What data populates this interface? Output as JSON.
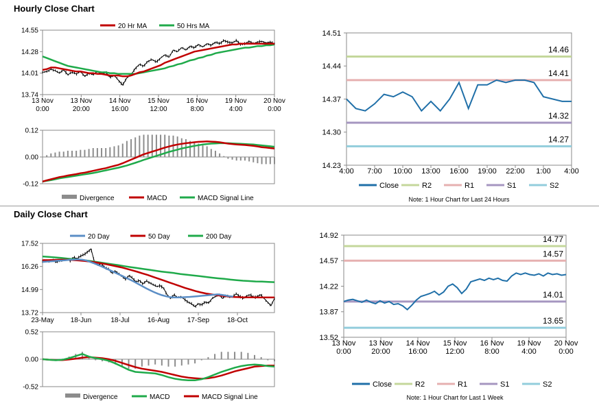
{
  "sections": {
    "hourly_title": "Hourly Close Chart",
    "daily_title": "Daily Close Chart"
  },
  "colors": {
    "ma_short": "#c00000",
    "ma_long": "#1faa4a",
    "ma_20d": "#5b8ec6",
    "close": "#1f6fa8",
    "r2": "#c4d79b",
    "r1": "#e6b0b0",
    "s1": "#a596c0",
    "s2": "#92cddc",
    "divergence": "#8c8c8c",
    "price": "#000000"
  },
  "chart_data": [
    {
      "id": "hourly_price",
      "type": "line",
      "legend": [
        "20 Hr MA",
        "50 Hrs MA"
      ],
      "ylim": [
        13.74,
        14.55
      ],
      "y_ticks": [
        "14.55",
        "14.28",
        "14.01",
        "13.74"
      ],
      "x_ticks": [
        [
          "13 Nov",
          "0:00"
        ],
        [
          "13 Nov",
          "20:00"
        ],
        [
          "14 Nov",
          "16:00"
        ],
        [
          "15 Nov",
          "12:00"
        ],
        [
          "16 Nov",
          "8:00"
        ],
        [
          "19 Nov",
          "4:00"
        ],
        [
          "20 Nov",
          "0:00"
        ]
      ],
      "price": [
        14.02,
        14.03,
        14.06,
        14.04,
        14.01,
        14.05,
        13.99,
        14.02,
        14.0,
        14.03,
        13.97,
        14.01,
        13.99,
        14.03,
        14.0,
        14.02,
        13.96,
        13.98,
        13.92,
        13.86,
        13.95,
        13.99,
        14.07,
        14.12,
        14.1,
        14.16,
        14.18,
        14.15,
        14.2,
        14.24,
        14.21,
        14.3,
        14.28,
        14.33,
        14.3,
        14.35,
        14.33,
        14.37,
        14.34,
        14.38,
        14.36,
        14.4,
        14.38,
        14.42,
        14.4,
        14.39,
        14.42,
        14.37,
        14.38,
        14.41,
        14.38,
        14.4,
        14.41,
        14.39,
        14.4,
        14.38
      ],
      "ma20": [
        14.05,
        14.06,
        14.08,
        14.08,
        14.07,
        14.06,
        14.05,
        14.04,
        14.03,
        14.03,
        14.02,
        14.01,
        14.01,
        14.0,
        14.0,
        13.99,
        13.98,
        13.98,
        13.98,
        13.97,
        13.97,
        13.98,
        14.0,
        14.02,
        14.03,
        14.05,
        14.07,
        14.09,
        14.11,
        14.14,
        14.16,
        14.18,
        14.2,
        14.22,
        14.24,
        14.26,
        14.28,
        14.29,
        14.3,
        14.31,
        14.32,
        14.33,
        14.34,
        14.35,
        14.36,
        14.37,
        14.37,
        14.38,
        14.38,
        14.38,
        14.38,
        14.38,
        14.38,
        14.38,
        14.38,
        14.38
      ],
      "ma50": [
        14.22,
        14.2,
        14.18,
        14.16,
        14.14,
        14.12,
        14.1,
        14.09,
        14.08,
        14.07,
        14.06,
        14.05,
        14.04,
        14.03,
        14.02,
        14.02,
        14.01,
        14.01,
        14.0,
        14.0,
        14.0,
        14.0,
        14.0,
        14.01,
        14.02,
        14.03,
        14.04,
        14.05,
        14.06,
        14.07,
        14.09,
        14.1,
        14.12,
        14.13,
        14.15,
        14.17,
        14.18,
        14.2,
        14.21,
        14.23,
        14.24,
        14.26,
        14.27,
        14.28,
        14.29,
        14.3,
        14.31,
        14.32,
        14.33,
        14.33,
        14.34,
        14.35,
        14.35,
        14.36,
        14.36,
        14.37
      ]
    },
    {
      "id": "hourly_macd",
      "type": "line",
      "legend": [
        "Divergence",
        "MACD",
        "MACD Signal Line"
      ],
      "ylim": [
        -0.12,
        0.12
      ],
      "y_ticks": [
        "0.12",
        "0.00",
        "-0.12"
      ],
      "macd": [
        -0.11,
        -0.105,
        -0.1,
        -0.095,
        -0.09,
        -0.087,
        -0.083,
        -0.08,
        -0.077,
        -0.073,
        -0.07,
        -0.066,
        -0.062,
        -0.058,
        -0.054,
        -0.05,
        -0.045,
        -0.04,
        -0.035,
        -0.028,
        -0.02,
        -0.012,
        -0.004,
        0.004,
        0.012,
        0.018,
        0.024,
        0.03,
        0.036,
        0.042,
        0.047,
        0.052,
        0.056,
        0.059,
        0.062,
        0.064,
        0.066,
        0.068,
        0.069,
        0.07,
        0.069,
        0.068,
        0.066,
        0.063,
        0.06,
        0.058,
        0.056,
        0.055,
        0.054,
        0.052,
        0.05,
        0.047,
        0.044,
        0.042,
        0.04,
        0.038
      ],
      "signal": [
        -0.11,
        -0.107,
        -0.104,
        -0.1,
        -0.096,
        -0.093,
        -0.09,
        -0.087,
        -0.084,
        -0.081,
        -0.078,
        -0.075,
        -0.072,
        -0.068,
        -0.064,
        -0.06,
        -0.056,
        -0.052,
        -0.048,
        -0.043,
        -0.038,
        -0.032,
        -0.026,
        -0.02,
        -0.013,
        -0.007,
        -0.001,
        0.005,
        0.011,
        0.017,
        0.023,
        0.028,
        0.033,
        0.038,
        0.042,
        0.046,
        0.05,
        0.053,
        0.056,
        0.058,
        0.06,
        0.061,
        0.062,
        0.062,
        0.062,
        0.061,
        0.06,
        0.059,
        0.058,
        0.057,
        0.056,
        0.054,
        0.052,
        0.05,
        0.048,
        0.046
      ]
    },
    {
      "id": "hourly_levels",
      "type": "line",
      "legend": [
        "Close",
        "R2",
        "R1",
        "S1",
        "S2"
      ],
      "note": "Note: 1 Hour Chart for Last 24 Hours",
      "ylim": [
        14.23,
        14.51
      ],
      "y_ticks": [
        "14.51",
        "14.44",
        "14.37",
        "14.30",
        "14.23"
      ],
      "x_ticks": [
        "4:00",
        "7:00",
        "10:00",
        "13:00",
        "16:00",
        "19:00",
        "22:00",
        "1:00",
        "4:00"
      ],
      "close": [
        14.37,
        14.35,
        14.345,
        14.36,
        14.38,
        14.375,
        14.385,
        14.375,
        14.345,
        14.365,
        14.345,
        14.37,
        14.405,
        14.35,
        14.4,
        14.4,
        14.41,
        14.405,
        14.41,
        14.41,
        14.405,
        14.375,
        14.37,
        14.365,
        14.365
      ],
      "levels": {
        "r2": 14.46,
        "r1": 14.41,
        "s1": 14.32,
        "s2": 14.27
      },
      "level_labels": {
        "r2": "14.46",
        "r1": "14.41",
        "s1": "14.32",
        "s2": "14.27"
      }
    },
    {
      "id": "daily_price",
      "type": "line",
      "legend": [
        "20 Day",
        "50 Day",
        "200 Day"
      ],
      "ylim": [
        13.72,
        17.52
      ],
      "y_ticks": [
        "17.52",
        "16.26",
        "14.99",
        "13.72"
      ],
      "x_ticks": [
        "23-May",
        "18-Jun",
        "18-Jul",
        "16-Aug",
        "17-Sep",
        "18-Oct"
      ],
      "price": [
        16.55,
        16.62,
        16.5,
        16.6,
        16.48,
        16.58,
        16.62,
        16.7,
        16.55,
        16.75,
        16.68,
        16.82,
        16.9,
        17.05,
        17.22,
        16.5,
        16.35,
        16.4,
        16.2,
        16.1,
        15.9,
        16.0,
        15.85,
        15.7,
        15.55,
        15.75,
        15.6,
        15.4,
        15.48,
        15.3,
        15.45,
        15.35,
        15.25,
        15.15,
        15.2,
        15.05,
        14.7,
        14.5,
        14.7,
        14.55,
        14.6,
        14.45,
        14.3,
        14.2,
        14.05,
        14.2,
        14.15,
        14.3,
        14.25,
        14.5,
        14.6,
        14.7,
        14.5,
        14.65,
        14.55,
        14.6,
        14.75,
        14.6,
        14.5,
        14.65,
        14.7,
        14.55,
        14.6,
        14.7,
        14.5,
        14.3,
        14.1,
        14.5
      ],
      "ma20": [
        16.5,
        16.52,
        16.53,
        16.55,
        16.57,
        16.58,
        16.6,
        16.62,
        16.63,
        16.64,
        16.62,
        16.58,
        16.5,
        16.42,
        16.33,
        16.24,
        16.14,
        16.04,
        15.94,
        15.84,
        15.74,
        15.63,
        15.53,
        15.42,
        15.3,
        15.18,
        15.06,
        14.95,
        14.85,
        14.76,
        14.68,
        14.62,
        14.57,
        14.55,
        14.55,
        14.56,
        14.57,
        14.58,
        14.6,
        14.62,
        14.64,
        14.66,
        14.68,
        14.7,
        14.72,
        14.7,
        14.66,
        14.62,
        14.6
      ],
      "ma50": [
        16.6,
        16.6,
        16.61,
        16.62,
        16.62,
        16.62,
        16.6,
        16.58,
        16.55,
        16.52,
        16.48,
        16.43,
        16.38,
        16.32,
        16.26,
        16.2,
        16.12,
        16.04,
        15.96,
        15.87,
        15.78,
        15.68,
        15.58,
        15.48,
        15.38,
        15.28,
        15.18,
        15.08,
        14.99,
        14.9,
        14.83,
        14.77,
        14.72,
        14.68,
        14.64,
        14.61,
        14.58,
        14.57,
        14.56,
        14.56,
        14.56,
        14.55,
        14.55,
        14.55,
        14.55
      ],
      "ma200": [
        16.8,
        16.78,
        16.75,
        16.72,
        16.68,
        16.65,
        16.62,
        16.58,
        16.53,
        16.48,
        16.43,
        16.38,
        16.33,
        16.27,
        16.22,
        16.17,
        16.12,
        16.07,
        16.02,
        15.97,
        15.93,
        15.89,
        15.84,
        15.8,
        15.76,
        15.72,
        15.68,
        15.64,
        15.6,
        15.57,
        15.53,
        15.5,
        15.47,
        15.45,
        15.43,
        15.42,
        15.4,
        15.39
      ]
    },
    {
      "id": "daily_macd",
      "type": "line",
      "legend": [
        "Divergence",
        "MACD",
        "MACD Signal Line"
      ],
      "ylim": [
        -0.52,
        0.52
      ],
      "y_ticks": [
        "0.52",
        "0.00",
        "-0.52"
      ],
      "macd": [
        0.0,
        -0.01,
        -0.02,
        -0.01,
        0.02,
        0.06,
        0.1,
        0.05,
        0.02,
        0.0,
        -0.03,
        -0.08,
        -0.14,
        -0.2,
        -0.24,
        -0.25,
        -0.26,
        -0.27,
        -0.3,
        -0.34,
        -0.37,
        -0.39,
        -0.4,
        -0.4,
        -0.38,
        -0.34,
        -0.29,
        -0.24,
        -0.2,
        -0.16,
        -0.13,
        -0.11,
        -0.1,
        -0.11,
        -0.13,
        -0.14
      ],
      "signal": [
        0.0,
        -0.01,
        -0.015,
        -0.015,
        -0.005,
        0.01,
        0.03,
        0.04,
        0.03,
        0.02,
        0.0,
        -0.03,
        -0.07,
        -0.11,
        -0.15,
        -0.18,
        -0.2,
        -0.22,
        -0.24,
        -0.27,
        -0.3,
        -0.33,
        -0.35,
        -0.36,
        -0.37,
        -0.36,
        -0.34,
        -0.31,
        -0.27,
        -0.23,
        -0.2,
        -0.17,
        -0.14,
        -0.13,
        -0.12,
        -0.12
      ]
    },
    {
      "id": "daily_levels",
      "type": "line",
      "legend": [
        "Close",
        "R2",
        "R1",
        "S1",
        "S2"
      ],
      "note": "Note: 1 Hour Chart for Last 1 Week",
      "ylim": [
        13.52,
        14.92
      ],
      "y_ticks": [
        "14.92",
        "14.57",
        "14.22",
        "13.87",
        "13.52"
      ],
      "x_ticks": [
        [
          "13 Nov",
          "0:00"
        ],
        [
          "13 Nov",
          "20:00"
        ],
        [
          "14 Nov",
          "16:00"
        ],
        [
          "15 Nov",
          "12:00"
        ],
        [
          "16 Nov",
          "8:00"
        ],
        [
          "19 Nov",
          "4:00"
        ],
        [
          "20 Nov",
          "0:00"
        ]
      ],
      "close": [
        14.01,
        14.03,
        14.04,
        14.02,
        14.0,
        14.03,
        14.0,
        13.98,
        14.02,
        13.99,
        14.01,
        13.97,
        13.98,
        13.95,
        13.9,
        13.96,
        14.03,
        14.08,
        14.1,
        14.12,
        14.15,
        14.1,
        14.14,
        14.22,
        14.25,
        14.2,
        14.12,
        14.18,
        14.28,
        14.3,
        14.32,
        14.3,
        14.33,
        14.31,
        14.33,
        14.3,
        14.29,
        14.36,
        14.4,
        14.38,
        14.4,
        14.38,
        14.37,
        14.39,
        14.36,
        14.4,
        14.38,
        14.39,
        14.37,
        14.38
      ],
      "levels": {
        "r2": 14.77,
        "r1": 14.57,
        "s1": 14.01,
        "s2": 13.65
      },
      "level_labels": {
        "r2": "14.77",
        "r1": "14.57",
        "s1": "14.01",
        "s2": "13.65"
      }
    }
  ]
}
